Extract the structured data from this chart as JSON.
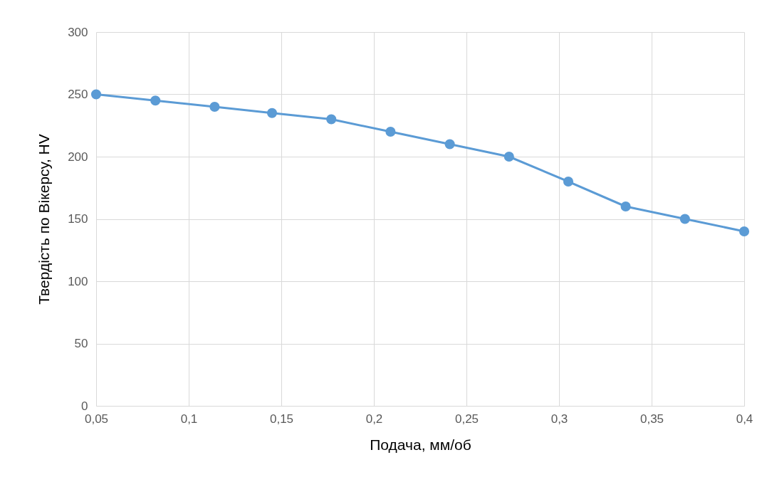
{
  "chart_data": {
    "type": "line",
    "xlabel": "Подача, мм/об",
    "ylabel": "Твердість по Вікерсу, HV",
    "x": [
      0.05,
      0.082,
      0.114,
      0.145,
      0.177,
      0.209,
      0.241,
      0.273,
      0.305,
      0.336,
      0.368,
      0.4
    ],
    "series": [
      {
        "color": "#5b9bd5",
        "values": [
          250,
          245,
          240,
          235,
          230,
          220,
          210,
          200,
          180,
          160,
          150,
          140
        ]
      }
    ],
    "xlim": [
      0.05,
      0.4
    ],
    "xticks": [
      {
        "value": 0.05,
        "label": "0,05"
      },
      {
        "value": 0.1,
        "label": "0,1"
      },
      {
        "value": 0.15,
        "label": "0,15"
      },
      {
        "value": 0.2,
        "label": "0,2"
      },
      {
        "value": 0.25,
        "label": "0,25"
      },
      {
        "value": 0.3,
        "label": "0,3"
      },
      {
        "value": 0.35,
        "label": "0,35"
      },
      {
        "value": 0.4,
        "label": "0,4"
      }
    ],
    "ylim": [
      0,
      300
    ],
    "yticks": [
      0,
      50,
      100,
      150,
      200,
      250,
      300
    ],
    "grid": true,
    "marker": "circle",
    "line_style": "solid"
  }
}
